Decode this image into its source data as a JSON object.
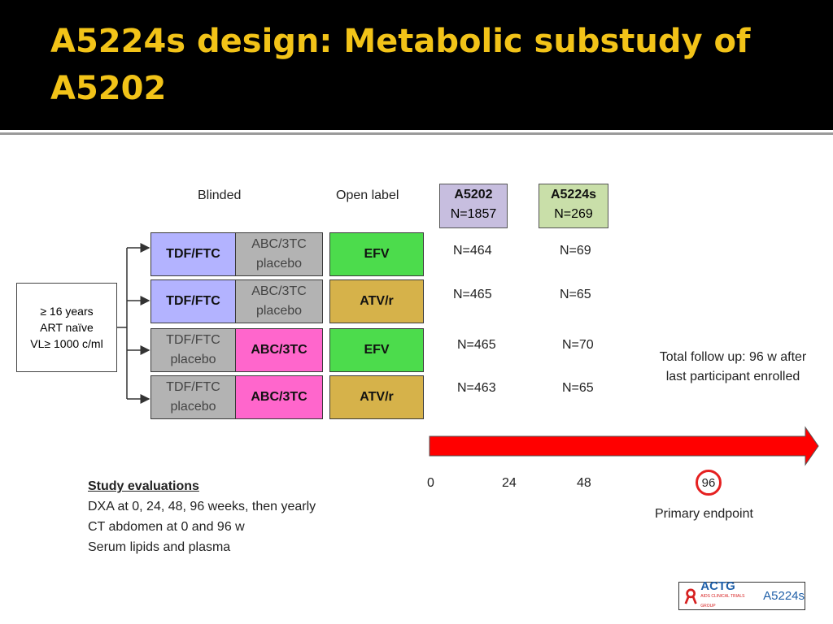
{
  "slide": {
    "title": "A5224s design: Metabolic substudy of A5202"
  },
  "headers": {
    "blinded": "Blinded",
    "open_label": "Open label",
    "a5202_name": "A5202",
    "a5202_n": "N=1857",
    "a5224s_name": "A5224s",
    "a5224s_n": "N=269"
  },
  "eligibility": [
    "≥ 16 years",
    "ART naïve",
    "VL≥  1000 c/ml"
  ],
  "arms": [
    {
      "blind1": "TDF/FTC",
      "blind2": "ABC/3TC placebo",
      "open": "EFV",
      "n_a5202": "N=464",
      "n_a5224s": "N=69"
    },
    {
      "blind1": "TDF/FTC",
      "blind2": "ABC/3TC placebo",
      "open": "ATV/r",
      "n_a5202": "N=465",
      "n_a5224s": "N=65"
    },
    {
      "blind1": "TDF/FTC placebo",
      "blind2": "ABC/3TC",
      "open": "EFV",
      "n_a5202": "N=465",
      "n_a5224s": "N=70"
    },
    {
      "blind1": "TDF/FTC placebo",
      "blind2": "ABC/3TC",
      "open": "ATV/r",
      "n_a5202": "N=463",
      "n_a5224s": "N=65"
    }
  ],
  "follow_up": "Total follow up: 96 w after last participant enrolled",
  "timeline": {
    "ticks": [
      "0",
      "24",
      "48",
      "96"
    ],
    "primary_endpoint": "Primary endpoint"
  },
  "evaluations": {
    "heading": "Study evaluations",
    "items": [
      "DXA at 0, 24, 48, 96 weeks, then yearly",
      "CT abdomen at 0 and 96 w",
      "Serum lipids and plasma"
    ]
  },
  "logo": {
    "brand": "ACTG",
    "subtitle": "AIDS CLINICAL TRIALS GROUP",
    "code": "A5224s"
  },
  "colors": {
    "title": "#f2c318",
    "tdf_ftc": "#b3b3ff",
    "abc_3tc": "#ff66cc",
    "placebo": "#b3b3b3",
    "efv": "#4cdc4c",
    "atv_r": "#d6b24a",
    "a5202_header": "#c7bedf",
    "a5224s_header": "#c9dfa9",
    "arrow": "#ff0000"
  }
}
